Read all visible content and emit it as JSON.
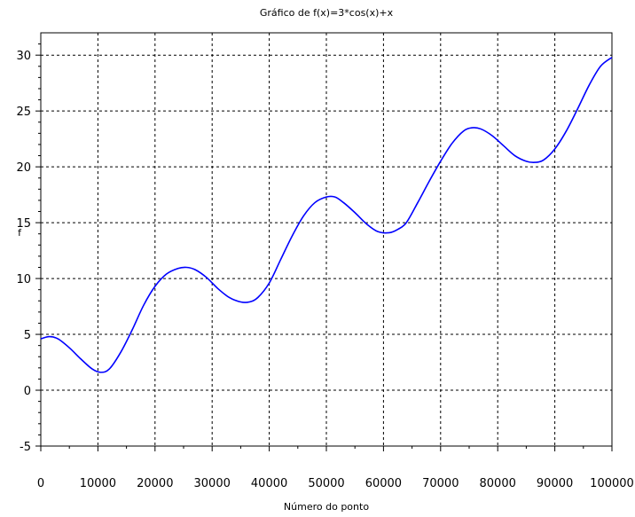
{
  "chart_data": {
    "type": "line",
    "title": "Gráfico de f(x)=3*cos(x)+x",
    "xlabel": "Número do ponto",
    "ylabel": "f",
    "xlim": [
      0,
      100000
    ],
    "ylim": [
      -5,
      32
    ],
    "x_ticks": [
      0,
      10000,
      20000,
      30000,
      40000,
      50000,
      60000,
      70000,
      80000,
      90000,
      100000
    ],
    "x_tick_labels": [
      "0",
      "10000",
      "20000",
      "30000",
      "40000",
      "50000",
      "60000",
      "70000",
      "80000",
      "90000",
      "100000"
    ],
    "y_ticks": [
      -5,
      0,
      5,
      10,
      15,
      20,
      25,
      30
    ],
    "y_tick_labels": [
      "-5",
      "0",
      "5",
      "10",
      "15",
      "20",
      "25",
      "30"
    ],
    "grid": true,
    "series": [
      {
        "color": "#0000ff",
        "x": [
          0,
          1500,
          3000,
          5000,
          7000,
          9000,
          10500,
          12000,
          14000,
          16000,
          18000,
          20000,
          22000,
          24000,
          25500,
          27000,
          29000,
          31000,
          33000,
          35000,
          36500,
          38000,
          40000,
          42000,
          44000,
          46000,
          48000,
          50000,
          51500,
          53000,
          55000,
          57000,
          59000,
          61000,
          62500,
          64000,
          66000,
          68000,
          70000,
          72000,
          74000,
          75500,
          77000,
          79000,
          81000,
          83000,
          85000,
          86500,
          88000,
          90000,
          92000,
          94000,
          96000,
          98000,
          100000
        ],
        "y": [
          4.6,
          4.8,
          4.6,
          3.8,
          2.8,
          1.9,
          1.6,
          1.9,
          3.4,
          5.4,
          7.6,
          9.3,
          10.4,
          10.9,
          11.0,
          10.8,
          10.1,
          9.1,
          8.3,
          7.9,
          7.9,
          8.3,
          9.6,
          11.7,
          13.8,
          15.6,
          16.8,
          17.3,
          17.3,
          16.8,
          15.9,
          14.9,
          14.2,
          14.1,
          14.4,
          15.0,
          16.8,
          18.7,
          20.5,
          22.1,
          23.2,
          23.5,
          23.4,
          22.8,
          21.9,
          21.0,
          20.5,
          20.4,
          20.6,
          21.6,
          23.2,
          25.2,
          27.3,
          29.0,
          29.8
        ]
      }
    ]
  }
}
